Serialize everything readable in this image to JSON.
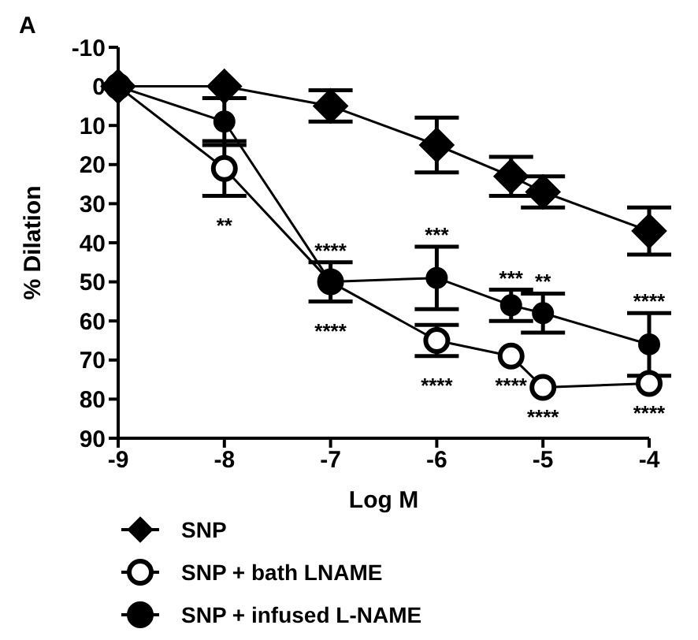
{
  "chart_data": {
    "type": "line",
    "xlabel": "Log M",
    "ylabel": "% Dilation",
    "xlim": [
      -9,
      -4
    ],
    "xticks": [
      -9,
      -8,
      -7,
      -6,
      -5,
      -4
    ],
    "ylim": [
      90,
      -10
    ],
    "yticks": [
      -10,
      0,
      10,
      20,
      30,
      40,
      50,
      60,
      70,
      80,
      90
    ],
    "x": [
      -9,
      -8,
      -7,
      -6,
      -5.3,
      -5,
      -4
    ],
    "series": [
      {
        "name": "SNP",
        "color": "#000000",
        "marker": "diamond",
        "values": [
          0,
          0,
          5,
          15,
          23,
          27,
          37
        ],
        "errors": [
          null,
          null,
          4,
          7,
          5,
          4,
          6
        ]
      },
      {
        "name": "SNP + bath LNAME",
        "color": "#ffffff",
        "marker": "circle",
        "values": [
          0,
          21,
          50,
          65,
          69,
          77,
          76
        ],
        "errors": [
          null,
          7,
          5,
          4,
          null,
          null,
          null
        ]
      },
      {
        "name": "SNP + infused L-NAME",
        "color": "#000000",
        "marker": "circle",
        "values": [
          0,
          9,
          50,
          49,
          56,
          58,
          66
        ],
        "errors": [
          null,
          6,
          null,
          8,
          4,
          5,
          8
        ]
      }
    ],
    "annotations": [
      "A",
      {
        "text": "**",
        "x": -8,
        "y": 21
      },
      {
        "text": "****",
        "x": -7,
        "y": 50
      },
      {
        "text": "****",
        "x": -7,
        "y": 50
      },
      {
        "text": "***",
        "x": -6,
        "y": 49
      },
      {
        "text": "***",
        "x": -5.3,
        "y": 56
      },
      {
        "text": "**",
        "x": -5,
        "y": 58
      },
      {
        "text": "****",
        "x": -4,
        "y": 66
      },
      {
        "text": "****",
        "x": -6,
        "y": 65
      },
      {
        "text": "****",
        "x": -5.3,
        "y": 69
      },
      {
        "text": "****",
        "x": -5,
        "y": 77
      },
      {
        "text": "****",
        "x": -4,
        "y": 76
      }
    ],
    "legend": "bottom",
    "grid": false
  }
}
